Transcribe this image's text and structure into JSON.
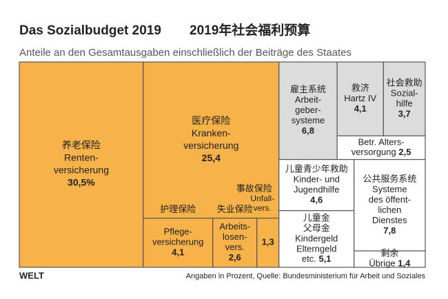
{
  "chart_data": {
    "type": "treemap",
    "title": "Das Sozialbudget 2019",
    "title_cn": "2019年社会福利预算",
    "subtitle": "Anteile an den Gesamtausgaben einschließlich der Beiträge des Staates",
    "logo": "WELT",
    "source": "Angaben in Prozent, Quelle: Bundesministerium für Arbeit und Soziales",
    "items": [
      {
        "label": [
          "Renten-",
          "versicherung"
        ],
        "cn": [
          "养老保险"
        ],
        "value": 30.5,
        "value_label": "30,5%",
        "color": "#f7b24a"
      },
      {
        "label": [
          "Kranken-",
          "versicherung"
        ],
        "cn": [
          "医疗保险"
        ],
        "value": 25.4,
        "value_label": "25,4",
        "color": "#f7b24a"
      },
      {
        "label": [
          "Pflege-",
          "versicherung"
        ],
        "cn": [
          "护理保险"
        ],
        "value": 4.1,
        "value_label": "4,1",
        "color": "#f7b24a"
      },
      {
        "label": [
          "Arbeits-",
          "losen-",
          "vers."
        ],
        "cn": [
          "失业保险"
        ],
        "value": 2.6,
        "value_label": "2,6",
        "color": "#f7b24a"
      },
      {
        "label": [
          "Unfall-",
          "vers."
        ],
        "cn": [
          "事故保险"
        ],
        "value": 1.3,
        "value_label": "1,3",
        "color": "#f7b24a"
      },
      {
        "label": [
          "Arbeit-",
          "geber-",
          "systeme"
        ],
        "cn": [
          "雇主系统"
        ],
        "value": 6.8,
        "value_label": "6,8",
        "color": "#dcdcdc"
      },
      {
        "label": [
          "Hartz IV"
        ],
        "cn": [
          "救济"
        ],
        "value": 4.1,
        "value_label": "4,1",
        "color": "#dcdcdc"
      },
      {
        "label": [
          "Sozial-",
          "hilfe"
        ],
        "cn": [
          "社会救助"
        ],
        "value": 3.7,
        "value_label": "3,7",
        "color": "#dcdcdc"
      },
      {
        "label": [
          "Betr. Alters-",
          "versorgung"
        ],
        "cn": [],
        "value": 2.5,
        "value_label": "2,5",
        "color": "#ffffff"
      },
      {
        "label": [
          "Kinder- und",
          "Jugendhilfe"
        ],
        "cn": [
          "儿童青少年救助"
        ],
        "value": 4.6,
        "value_label": "4,6",
        "color": "#ffffff"
      },
      {
        "label": [
          "Kindergeld",
          "Elterngeld",
          "etc."
        ],
        "cn": [
          "儿童金",
          "父母金"
        ],
        "value": 5.1,
        "value_label": "5,1",
        "color": "#ffffff"
      },
      {
        "label": [
          "Systeme",
          "des öffent-",
          "lichen",
          "Dienstes"
        ],
        "cn": [
          "公共服务系统"
        ],
        "value": 7.8,
        "value_label": "7,8",
        "color": "#ffffff"
      },
      {
        "label": [
          "Übrige"
        ],
        "cn": [
          "剩余"
        ],
        "value": 1.4,
        "value_label": "1,4",
        "color": "#ffffff"
      }
    ]
  }
}
